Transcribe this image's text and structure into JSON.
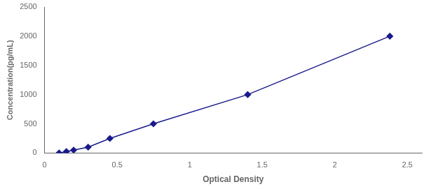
{
  "chart_data": {
    "type": "line",
    "x": [
      0.1,
      0.15,
      0.2,
      0.3,
      0.45,
      0.75,
      1.4,
      2.38
    ],
    "values": [
      0,
      25,
      50,
      100,
      250,
      500,
      1000,
      2000
    ],
    "color": "#1a1a8c",
    "marker": "diamond",
    "xlabel": "Optical Density",
    "ylabel": "Concentration(pg/mL)",
    "xlim": [
      0.0,
      2.6
    ],
    "ylim": [
      0,
      2500
    ],
    "xticks": [
      0,
      0.5,
      1,
      1.5,
      2,
      2.5
    ],
    "yticks": [
      0,
      500,
      1000,
      1500,
      2000,
      2500
    ],
    "grid": false
  }
}
